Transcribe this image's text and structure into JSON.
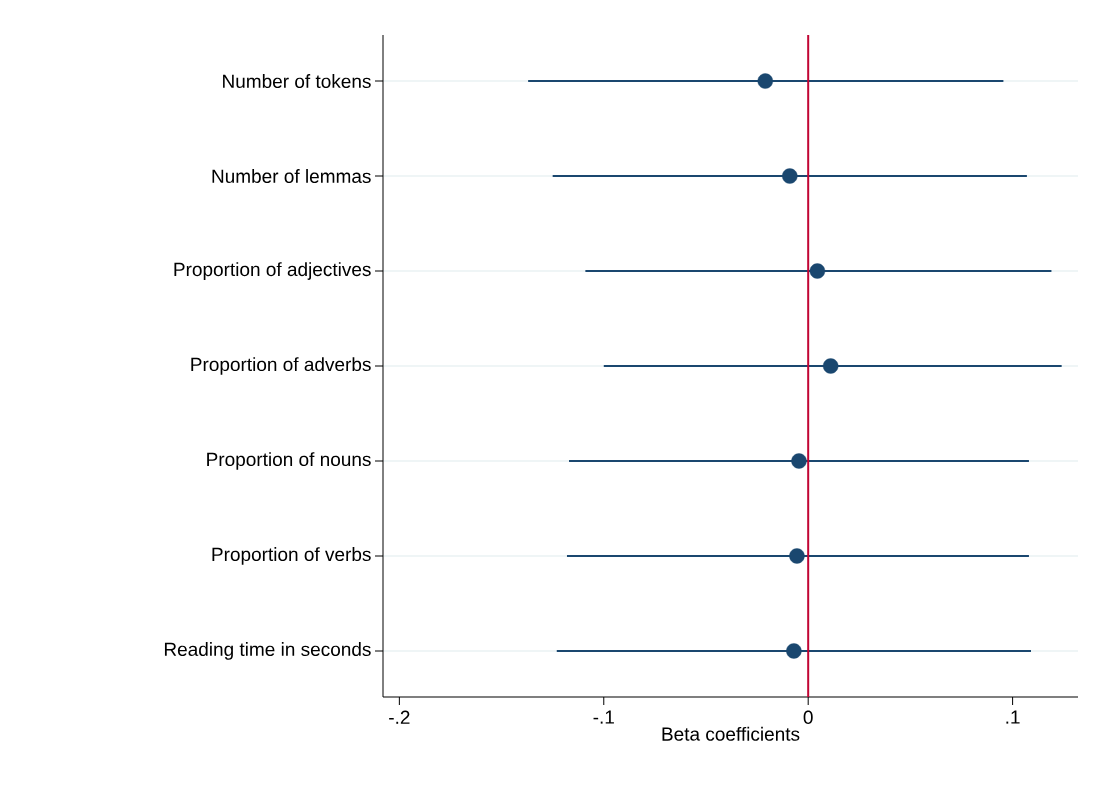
{
  "chart_data": {
    "type": "scatter",
    "orientation": "horizontal",
    "xlabel": "Beta coefficients",
    "categories": [
      "Number of tokens",
      "Number of lemmas",
      "Proportion of adjectives",
      "Proportion of adverbs",
      "Proportion of nouns",
      "Proportion of verbs",
      "Reading time in seconds"
    ],
    "values": [
      -0.021,
      -0.009,
      0.0045,
      0.011,
      -0.0045,
      -0.0055,
      -0.007
    ],
    "errors": [
      [
        -0.137,
        0.0955
      ],
      [
        -0.125,
        0.107
      ],
      [
        -0.109,
        0.119
      ],
      [
        -0.1,
        0.124
      ],
      [
        -0.117,
        0.108
      ],
      [
        -0.118,
        0.108
      ],
      [
        -0.123,
        0.109
      ]
    ],
    "color": "#1a476f",
    "marker": "circle",
    "xlim": [
      -0.208,
      0.132
    ],
    "xticks": [
      {
        "value": -0.2,
        "label": "-.2"
      },
      {
        "value": -0.1,
        "label": "-.1"
      },
      0,
      {
        "value": 0.1,
        "label": ".1"
      }
    ],
    "grid": "y",
    "ref_lines": [
      {
        "axis": "x",
        "value": 0,
        "color": "#c10534"
      }
    ]
  }
}
